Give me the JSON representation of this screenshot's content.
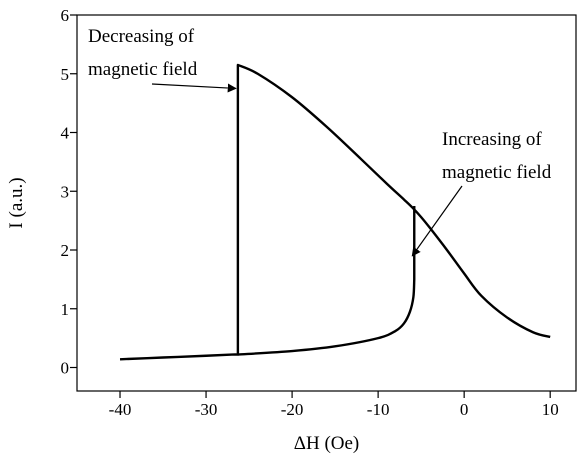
{
  "chart_data": {
    "type": "line",
    "xlabel": "ΔH (Oe)",
    "ylabel": "I (a.u.)",
    "xlim": [
      -45,
      13
    ],
    "ylim": [
      -0.4,
      6
    ],
    "xticks": [
      -40,
      -30,
      -20,
      -10,
      0,
      10
    ],
    "yticks": [
      0,
      1,
      2,
      3,
      4,
      5,
      6
    ],
    "xtick_labels": [
      "-40",
      "-30",
      "-20",
      "-10",
      "0",
      "10"
    ],
    "ytick_labels": [
      "0",
      "1",
      "2",
      "3",
      "4",
      "5",
      "6"
    ],
    "grid": false,
    "series": [
      {
        "x": [
          -40,
          -35,
          -30,
          -27,
          -26.3,
          -26.3,
          -24,
          -20,
          -16,
          -12,
          -9,
          -7,
          -6,
          -5,
          -4,
          -2,
          0,
          2,
          5,
          8,
          10
        ],
        "y": [
          0.14,
          0.17,
          0.2,
          0.22,
          0.22,
          5.15,
          5.0,
          4.6,
          4.1,
          3.55,
          3.13,
          2.86,
          2.72,
          2.56,
          2.38,
          2.0,
          1.6,
          1.22,
          0.85,
          0.6,
          0.52
        ]
      },
      {
        "x": [
          -26.3,
          -20,
          -15,
          -10,
          -8,
          -7,
          -6.3,
          -5.9,
          -5.8,
          -5.8
        ],
        "y": [
          0.22,
          0.28,
          0.36,
          0.5,
          0.62,
          0.75,
          0.95,
          1.2,
          1.5,
          2.75
        ]
      }
    ],
    "annotations": [
      {
        "lines": [
          "Decreasing of",
          "magnetic field"
        ],
        "arrow_to": [
          -26.3,
          4.75
        ]
      },
      {
        "lines": [
          "Increasing of",
          "magnetic field"
        ],
        "arrow_to": [
          -5.8,
          1.9
        ]
      }
    ]
  }
}
